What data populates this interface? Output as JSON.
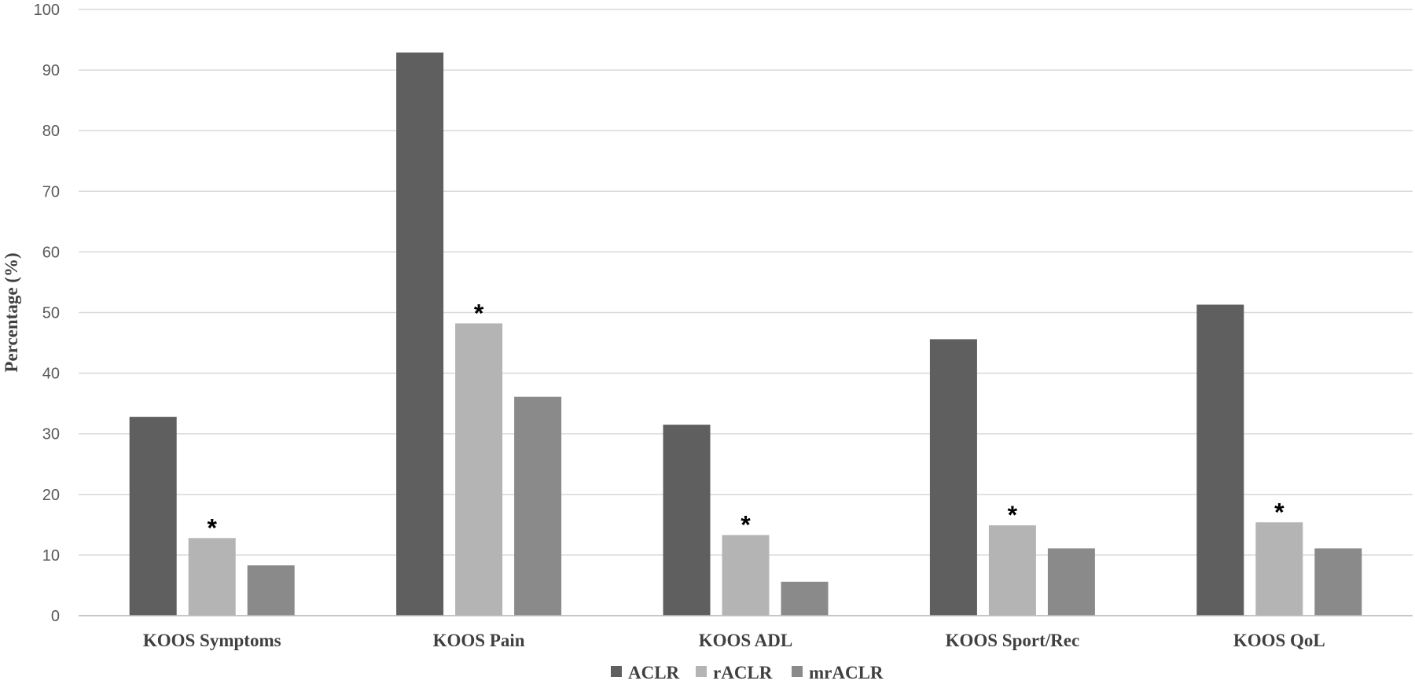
{
  "chart_data": {
    "type": "bar",
    "title": "",
    "xlabel": "",
    "ylabel": "Percentage (%)",
    "ylim": [
      0,
      100
    ],
    "yticks": [
      0,
      10,
      20,
      30,
      40,
      50,
      60,
      70,
      80,
      90,
      100
    ],
    "grid": true,
    "legend_position": "bottom",
    "categories": [
      "KOOS Symptoms",
      "KOOS Pain",
      "KOOS ADL",
      "KOOS Sport/Rec",
      "KOOS QoL"
    ],
    "series": [
      {
        "name": "ACLR",
        "color": "#5f5f5f",
        "values": [
          32.8,
          92.9,
          31.5,
          45.6,
          51.3
        ]
      },
      {
        "name": "rACLR",
        "color": "#b4b4b4",
        "values": [
          12.8,
          48.2,
          13.3,
          14.9,
          15.4
        ]
      },
      {
        "name": "mrACLR",
        "color": "#8a8a8a",
        "values": [
          8.3,
          36.1,
          5.6,
          11.1,
          11.1
        ]
      }
    ],
    "annotations": [
      {
        "text": "*",
        "category_index": 0,
        "series_index": 1
      },
      {
        "text": "*",
        "category_index": 1,
        "series_index": 1
      },
      {
        "text": "*",
        "category_index": 2,
        "series_index": 1
      },
      {
        "text": "*",
        "category_index": 3,
        "series_index": 1
      },
      {
        "text": "*",
        "category_index": 4,
        "series_index": 1
      }
    ]
  }
}
